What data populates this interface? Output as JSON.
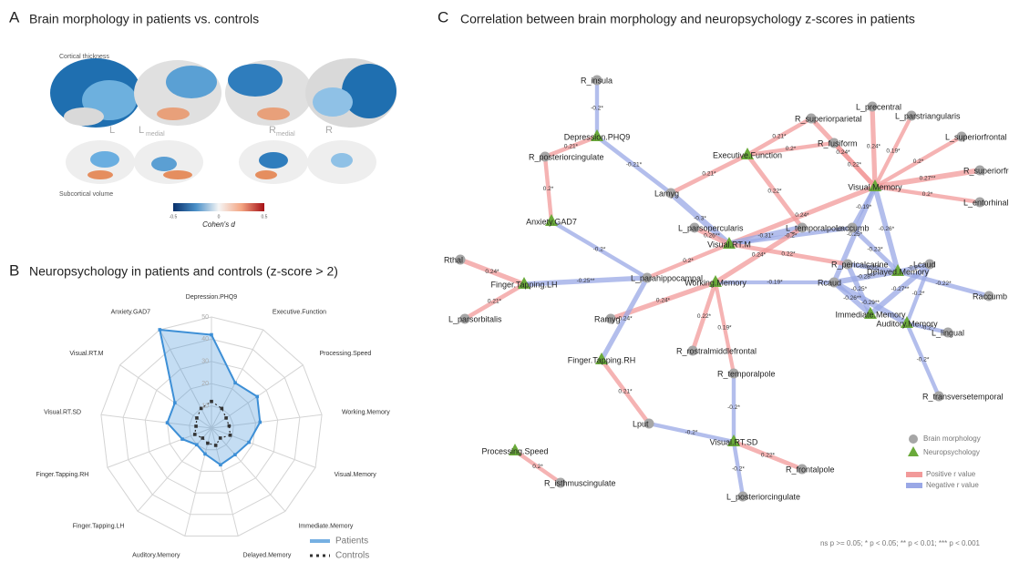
{
  "panel_a": {
    "label": "A",
    "title": "Brain morphology in patients vs. controls",
    "cortical_label": "Cortical thickness",
    "subcortical_label": "Subcortical volume",
    "hemi_left": "L",
    "hemi_right": "R",
    "medial": "medial",
    "colorbar_ticks": [
      "-0.5",
      "0",
      "0.5"
    ],
    "colorbar_title": "Cohen's d"
  },
  "chart_data": {
    "type": "radar",
    "panel_label": "B",
    "title": "Neuropsychology in patients and controls (z-score > 2)",
    "categories": [
      "Depression.PHQ9",
      "Executive.Function",
      "Processing.Speed",
      "Working.Memory",
      "Visual.Memory",
      "Immediate.Memory",
      "Delayed.Memory",
      "Auditory.Memory",
      "Finger.Tapping.LH",
      "Finger.Tapping.RH",
      "Visual.RT.SD",
      "Visual.RT.M",
      "Anxiety.GAD7"
    ],
    "series": [
      {
        "name": "Patients",
        "color": "#3d8fd6",
        "values": [
          42,
          23,
          25,
          22,
          18,
          16,
          17,
          12,
          10,
          14,
          20,
          20,
          50
        ]
      },
      {
        "name": "Controls",
        "color": "#333333",
        "values": [
          12,
          10,
          8,
          8,
          9,
          6,
          8,
          7,
          6,
          8,
          7,
          8,
          10
        ]
      }
    ],
    "rlim": [
      0,
      50
    ],
    "rticks": [
      10,
      20,
      30,
      40,
      50
    ]
  },
  "panel_c": {
    "label": "C",
    "title": "Correlation between brain morphology and neuropsychology z-scores in patients",
    "nodes": [
      {
        "label": "R_insula",
        "kind": "brain"
      },
      {
        "label": "Depression.PHQ9",
        "kind": "neuro"
      },
      {
        "label": "R_posteriorcingulate",
        "kind": "brain"
      },
      {
        "label": "Executive.Function",
        "kind": "neuro"
      },
      {
        "label": "L_precentral",
        "kind": "brain"
      },
      {
        "label": "L_parstriangularis",
        "kind": "brain"
      },
      {
        "label": "R_superiorparietal",
        "kind": "brain"
      },
      {
        "label": "R_fusiform",
        "kind": "brain"
      },
      {
        "label": "L_superiorfrontal",
        "kind": "brain"
      },
      {
        "label": "R_superiorfrontal",
        "kind": "brain"
      },
      {
        "label": "Visual.Memory",
        "kind": "neuro"
      },
      {
        "label": "L_entorhinal",
        "kind": "brain"
      },
      {
        "label": "Lamyg",
        "kind": "brain"
      },
      {
        "label": "Anxiety.GAD7",
        "kind": "neuro"
      },
      {
        "label": "L_parsopercularis",
        "kind": "brain"
      },
      {
        "label": "L_temporalpole",
        "kind": "brain"
      },
      {
        "label": "Laccumb",
        "kind": "brain"
      },
      {
        "label": "Visual.RT.M",
        "kind": "neuro"
      },
      {
        "label": "Rthal",
        "kind": "brain"
      },
      {
        "label": "L_parahippocampal",
        "kind": "brain"
      },
      {
        "label": "R_pericalcarine",
        "kind": "brain"
      },
      {
        "label": "Delayed.Memory",
        "kind": "neuro"
      },
      {
        "label": "Lcaud",
        "kind": "brain"
      },
      {
        "label": "Finger.Tapping.LH",
        "kind": "neuro"
      },
      {
        "label": "Working.Memory",
        "kind": "neuro"
      },
      {
        "label": "Rcaud",
        "kind": "brain"
      },
      {
        "label": "Raccumb",
        "kind": "brain"
      },
      {
        "label": "L_parsorbitalis",
        "kind": "brain"
      },
      {
        "label": "Ramyg",
        "kind": "brain"
      },
      {
        "label": "Immediate.Memory",
        "kind": "neuro"
      },
      {
        "label": "Auditory.Memory",
        "kind": "neuro"
      },
      {
        "label": "L_lingual",
        "kind": "brain"
      },
      {
        "label": "R_rostralmiddlefrontal",
        "kind": "brain"
      },
      {
        "label": "Finger.Tapping.RH",
        "kind": "neuro"
      },
      {
        "label": "R_temporalpole",
        "kind": "brain"
      },
      {
        "label": "R_transversetemporal",
        "kind": "brain"
      },
      {
        "label": "Lput",
        "kind": "brain"
      },
      {
        "label": "Visual.RT.SD",
        "kind": "neuro"
      },
      {
        "label": "Processing.Speed",
        "kind": "neuro"
      },
      {
        "label": "R_isthmuscingulate",
        "kind": "brain"
      },
      {
        "label": "R_frontalpole",
        "kind": "brain"
      },
      {
        "label": "L_posteriorcingulate",
        "kind": "brain"
      }
    ],
    "edges": [
      {
        "source": 0,
        "target": 1,
        "r": -0.2,
        "label": "-0.2*"
      },
      {
        "source": 1,
        "target": 2,
        "r": 0.21,
        "label": "0.21*"
      },
      {
        "source": 1,
        "target": 12,
        "r": -0.21,
        "label": "-0.21*"
      },
      {
        "source": 2,
        "target": 13,
        "r": 0.2,
        "label": "0.2*"
      },
      {
        "source": 13,
        "target": 19,
        "r": -0.2,
        "label": "-0.2*"
      },
      {
        "source": 3,
        "target": 12,
        "r": 0.21,
        "label": "0.21*"
      },
      {
        "source": 3,
        "target": 6,
        "r": 0.21,
        "label": "0.21*"
      },
      {
        "source": 3,
        "target": 7,
        "r": 0.2,
        "label": "0.2*"
      },
      {
        "source": 3,
        "target": 15,
        "r": 0.22,
        "label": "0.22*"
      },
      {
        "source": 10,
        "target": 6,
        "r": 0.24,
        "label": "0.24*"
      },
      {
        "source": 10,
        "target": 7,
        "r": 0.22,
        "label": "0.22*"
      },
      {
        "source": 10,
        "target": 4,
        "r": 0.24,
        "label": "0.24*"
      },
      {
        "source": 10,
        "target": 5,
        "r": 0.19,
        "label": "0.19*"
      },
      {
        "source": 10,
        "target": 8,
        "r": 0.2,
        "label": "0.2*"
      },
      {
        "source": 10,
        "target": 9,
        "r": 0.27,
        "label": "0.27**"
      },
      {
        "source": 10,
        "target": 11,
        "r": 0.2,
        "label": "0.2*"
      },
      {
        "source": 10,
        "target": 17,
        "r": 0.24,
        "label": "0.24*"
      },
      {
        "source": 10,
        "target": 16,
        "r": -0.19,
        "label": "-0.19*"
      },
      {
        "source": 10,
        "target": 21,
        "r": -0.26,
        "label": "-0.26*"
      },
      {
        "source": 10,
        "target": 25,
        "r": -0.25,
        "label": "-0.25*"
      },
      {
        "source": 12,
        "target": 17,
        "r": -0.3,
        "label": "-0.3*"
      },
      {
        "source": 14,
        "target": 17,
        "r": 0.26,
        "label": "0.26**"
      },
      {
        "source": 15,
        "target": 17,
        "r": -0.31,
        "label": "-0.31*"
      },
      {
        "source": 17,
        "target": 16,
        "r": -0.2,
        "label": "-0.2*"
      },
      {
        "source": 17,
        "target": 19,
        "r": 0.2,
        "label": "0.2*"
      },
      {
        "source": 17,
        "target": 20,
        "r": 0.22,
        "label": "0.22*"
      },
      {
        "source": 19,
        "target": 23,
        "r": -0.25,
        "label": "-0.25**"
      },
      {
        "source": 18,
        "target": 23,
        "r": 0.24,
        "label": "0.24*"
      },
      {
        "source": 27,
        "target": 23,
        "r": 0.21,
        "label": "0.21*"
      },
      {
        "source": 24,
        "target": 28,
        "r": 0.24,
        "label": "0.24*"
      },
      {
        "source": 24,
        "target": 25,
        "r": -0.19,
        "label": "-0.19*"
      },
      {
        "source": 24,
        "target": 32,
        "r": 0.22,
        "label": "0.22*"
      },
      {
        "source": 24,
        "target": 34,
        "r": 0.19,
        "label": "0.19*"
      },
      {
        "source": 24,
        "target": 15,
        "r": 0.24,
        "label": "0.24*"
      },
      {
        "source": 33,
        "target": 19,
        "r": -0.24,
        "label": "-0.24*"
      },
      {
        "source": 33,
        "target": 36,
        "r": 0.21,
        "label": "0.21*"
      },
      {
        "source": 34,
        "target": 37,
        "r": -0.2,
        "label": "-0.2*"
      },
      {
        "source": 36,
        "target": 37,
        "r": -0.2,
        "label": "-0.2*"
      },
      {
        "source": 37,
        "target": 40,
        "r": 0.22,
        "label": "0.22*"
      },
      {
        "source": 37,
        "target": 41,
        "r": -0.2,
        "label": "-0.2*"
      },
      {
        "source": 38,
        "target": 39,
        "r": 0.2,
        "label": "0.2*"
      },
      {
        "source": 21,
        "target": 22,
        "r": -0.2,
        "label": "-0.2*"
      },
      {
        "source": 21,
        "target": 25,
        "r": -0.28,
        "label": "-0.28**"
      },
      {
        "source": 21,
        "target": 20,
        "r": -0.22,
        "label": "-0.22*"
      },
      {
        "source": 21,
        "target": 16,
        "r": -0.23,
        "label": "-0.23*"
      },
      {
        "source": 21,
        "target": 26,
        "r": -0.22,
        "label": "-0.22*"
      },
      {
        "source": 29,
        "target": 25,
        "r": -0.26,
        "label": "-0.26**"
      },
      {
        "source": 29,
        "target": 22,
        "r": -0.27,
        "label": "-0.27**"
      },
      {
        "source": 29,
        "target": 20,
        "r": -0.25,
        "label": "-0.25*"
      },
      {
        "source": 30,
        "target": 31,
        "r": -0.2,
        "label": "-0.2*"
      },
      {
        "source": 30,
        "target": 35,
        "r": -0.2,
        "label": "-0.2*"
      },
      {
        "source": 30,
        "target": 22,
        "r": -0.2,
        "label": "-0.2*"
      },
      {
        "source": 30,
        "target": 25,
        "r": -0.29,
        "label": "-0.29**"
      }
    ],
    "legend": {
      "brain": "Brain morphology",
      "neuro": "Neuropsychology",
      "positive": "Positive r value",
      "negative": "Negative r value"
    },
    "positive_color": "#f29a9a",
    "negative_color": "#9aa8e6",
    "node_color": "#a6a6a6",
    "neuro_color": "#6aaa3a",
    "footnote": "ns p >= 0.05; * p < 0.05; ** p < 0.01; *** p < 0.001"
  }
}
